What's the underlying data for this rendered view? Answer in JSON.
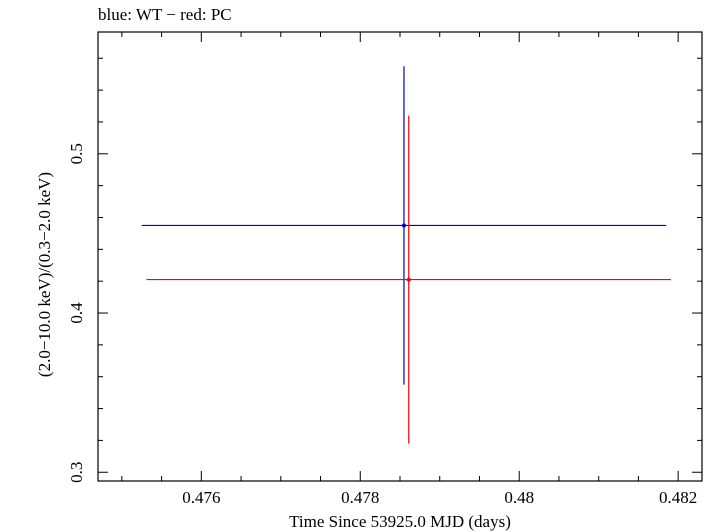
{
  "chart_data": {
    "type": "scatter",
    "title": "blue: WT − red: PC",
    "xlabel": "Time Since 53925.0 MJD (days)",
    "ylabel": "(2.0−10.0 keV)/(0.3−2.0 keV)",
    "xlim": [
      0.4747,
      0.4823
    ],
    "ylim": [
      0.2945,
      0.5765
    ],
    "xticks": [
      0.476,
      0.478,
      0.48,
      0.482
    ],
    "xtick_labels": [
      "0.476",
      "0.478",
      "0.48",
      "0.482"
    ],
    "yticks": [
      0.3,
      0.4,
      0.5
    ],
    "ytick_labels": [
      "0.3",
      "0.4",
      "0.5"
    ],
    "grid": false,
    "series": [
      {
        "color": "#0000cc",
        "points": [
          {
            "x": 0.47855,
            "y": 0.455,
            "xerr": [
              0.0033,
              0.0033
            ],
            "yerr": [
              0.1,
              0.1
            ]
          }
        ]
      },
      {
        "color": "#ff0000",
        "points": [
          {
            "x": 0.47861,
            "y": 0.421,
            "xerr": [
              0.0033,
              0.0033
            ],
            "yerr": [
              0.103,
              0.103
            ]
          }
        ]
      }
    ]
  }
}
